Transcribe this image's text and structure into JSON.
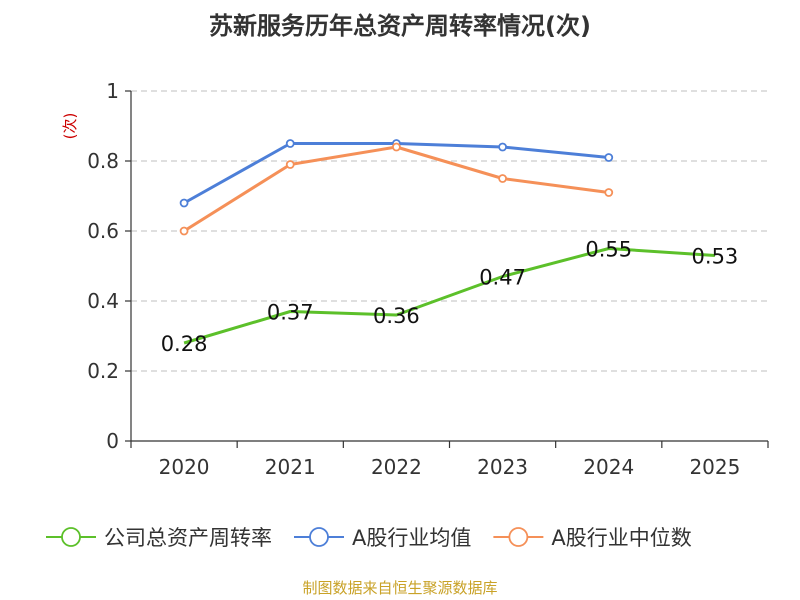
{
  "chart_data": {
    "type": "line",
    "title": "苏新服务历年总资产周转率情况(次)",
    "ylabel": "(次)",
    "xlabel": "",
    "categories": [
      "2020",
      "2021",
      "2022",
      "2023",
      "2024",
      "2025"
    ],
    "y_ticks": [
      "0",
      "0.2",
      "0.4",
      "0.6",
      "0.8",
      "1"
    ],
    "ylim": [
      0,
      1
    ],
    "grid": true,
    "legend_position": "bottom",
    "series": [
      {
        "name": "公司总资产周转率",
        "color": "#5cc02a",
        "values": [
          0.28,
          0.37,
          0.36,
          0.47,
          0.55,
          0.53
        ],
        "labels": [
          "0.28",
          "0.37",
          "0.36",
          "0.47",
          "0.55",
          "0.53"
        ],
        "show_labels": true,
        "markers": false
      },
      {
        "name": "A股行业均值",
        "color": "#4d7fd8",
        "values": [
          0.68,
          0.85,
          0.85,
          0.84,
          0.81,
          null
        ],
        "show_labels": false,
        "markers": true
      },
      {
        "name": "A股行业中位数",
        "color": "#f59058",
        "values": [
          0.6,
          0.79,
          0.84,
          0.75,
          0.71,
          null
        ],
        "show_labels": false,
        "markers": true
      }
    ]
  },
  "source": "制图数据来自恒生聚源数据库"
}
